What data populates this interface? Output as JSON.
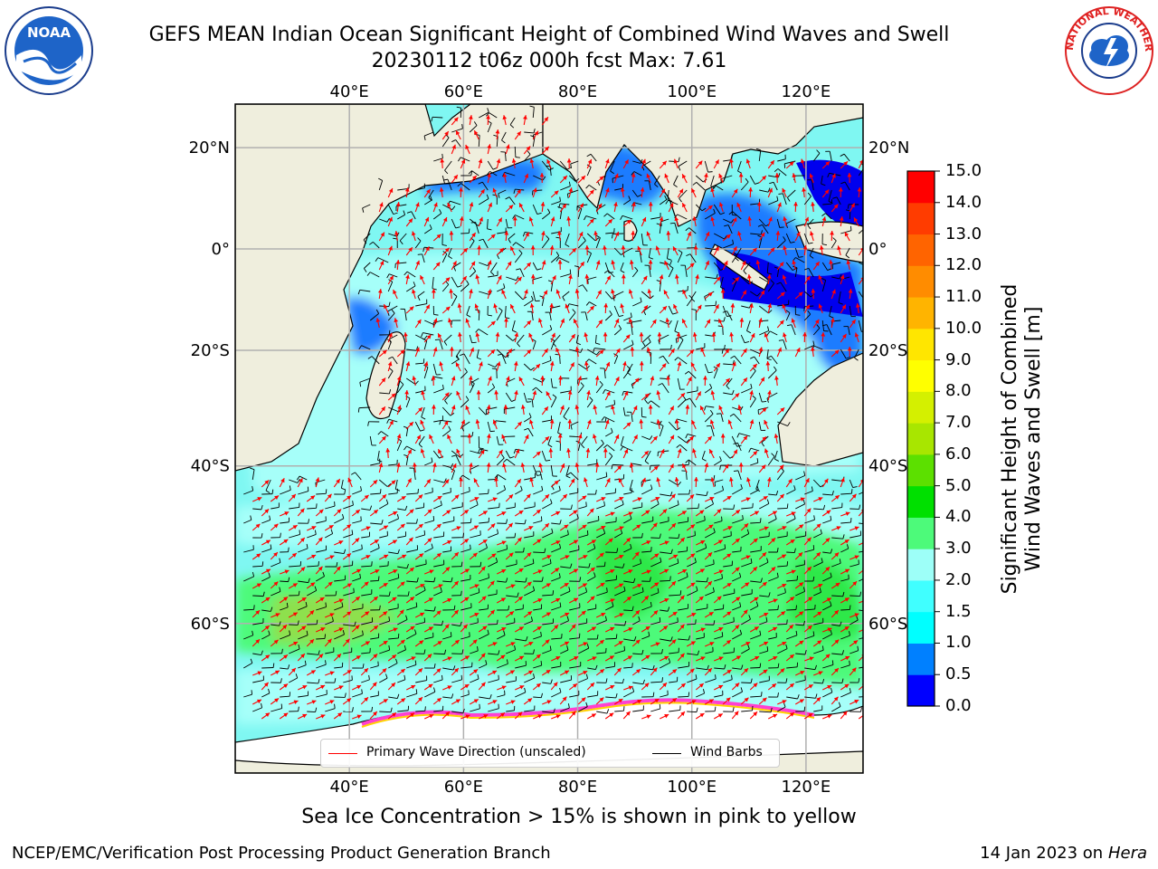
{
  "title": {
    "line1": "GEFS MEAN Indian Ocean Significant Height of Combined Wind Waves and Swell",
    "line2": "20230112 t06z 000h fcst   Max: 7.61"
  },
  "logos": {
    "noaa": {
      "text": "NOAA",
      "icon": "noaa-logo"
    },
    "nws": {
      "text": "NATIONAL WEATHER SERVICE",
      "icon": "nws-logo"
    }
  },
  "map": {
    "lon_labels": [
      "40°E",
      "60°E",
      "80°E",
      "100°E",
      "120°E"
    ],
    "lon_values": [
      40,
      60,
      80,
      100,
      120
    ],
    "lat_labels": [
      "20°N",
      "0°",
      "20°S",
      "40°S",
      "60°S"
    ],
    "lat_values": [
      20,
      0,
      -20,
      -40,
      -60
    ],
    "lon_range": [
      20,
      130
    ],
    "lat_range": [
      -72,
      28
    ],
    "grid": true,
    "land_color": "#efeedd",
    "ocean_base_color": "#7ff7f2"
  },
  "legend": {
    "wave_direction": "Primary Wave Direction (unscaled)",
    "wind_barbs": "Wind Barbs",
    "wave_color": "#ff0000",
    "barb_color": "#000000",
    "placement": "bottom-center"
  },
  "colorbar": {
    "title_line1": "Significant Height of Combined",
    "title_line2": "Wind Waves and Swell [m]",
    "ticks": [
      "0.0",
      "0.5",
      "1.0",
      "1.5",
      "2.0",
      "3.0",
      "4.0",
      "5.0",
      "6.0",
      "7.0",
      "8.0",
      "9.0",
      "10.0",
      "11.0",
      "12.0",
      "13.0",
      "14.0",
      "15.0"
    ],
    "colors": [
      "#0000ff",
      "#0080ff",
      "#00ffff",
      "#40ffff",
      "#9dfff8",
      "#4dfa7a",
      "#00e000",
      "#5ce000",
      "#a8e600",
      "#d4f000",
      "#ffff00",
      "#ffe600",
      "#ffb400",
      "#ff8c00",
      "#ff6400",
      "#ff3c00",
      "#ff0000"
    ]
  },
  "ice_note": "Sea Ice Concentration > 15% is shown in pink to yellow",
  "footer": {
    "left": "NCEP/EMC/Verification Post Processing Product Generation Branch",
    "right_date": "14 Jan 2023 on",
    "right_host": "Hera"
  }
}
